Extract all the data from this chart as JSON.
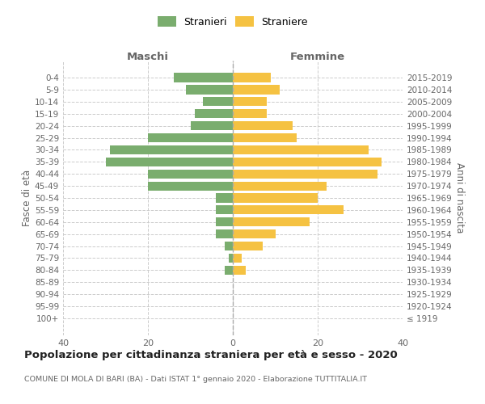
{
  "age_groups": [
    "100+",
    "95-99",
    "90-94",
    "85-89",
    "80-84",
    "75-79",
    "70-74",
    "65-69",
    "60-64",
    "55-59",
    "50-54",
    "45-49",
    "40-44",
    "35-39",
    "30-34",
    "25-29",
    "20-24",
    "15-19",
    "10-14",
    "5-9",
    "0-4"
  ],
  "birth_years": [
    "≤ 1919",
    "1920-1924",
    "1925-1929",
    "1930-1934",
    "1935-1939",
    "1940-1944",
    "1945-1949",
    "1950-1954",
    "1955-1959",
    "1960-1964",
    "1965-1969",
    "1970-1974",
    "1975-1979",
    "1980-1984",
    "1985-1989",
    "1990-1994",
    "1995-1999",
    "2000-2004",
    "2005-2009",
    "2010-2014",
    "2015-2019"
  ],
  "maschi": [
    0,
    0,
    0,
    0,
    2,
    1,
    2,
    4,
    4,
    4,
    4,
    20,
    20,
    30,
    29,
    20,
    10,
    9,
    7,
    11,
    14
  ],
  "femmine": [
    0,
    0,
    0,
    0,
    3,
    2,
    7,
    10,
    18,
    26,
    20,
    22,
    34,
    35,
    32,
    15,
    14,
    8,
    8,
    11,
    9
  ],
  "male_color": "#7aad6e",
  "female_color": "#f5c242",
  "background_color": "#ffffff",
  "grid_color": "#cccccc",
  "title": "Popolazione per cittadinanza straniera per età e sesso - 2020",
  "subtitle": "COMUNE DI MOLA DI BARI (BA) - Dati ISTAT 1° gennaio 2020 - Elaborazione TUTTITALIA.IT",
  "xlabel_left": "Maschi",
  "xlabel_right": "Femmine",
  "ylabel_left": "Fasce di età",
  "ylabel_right": "Anni di nascita",
  "legend_male": "Stranieri",
  "legend_female": "Straniere",
  "xlim": 40
}
